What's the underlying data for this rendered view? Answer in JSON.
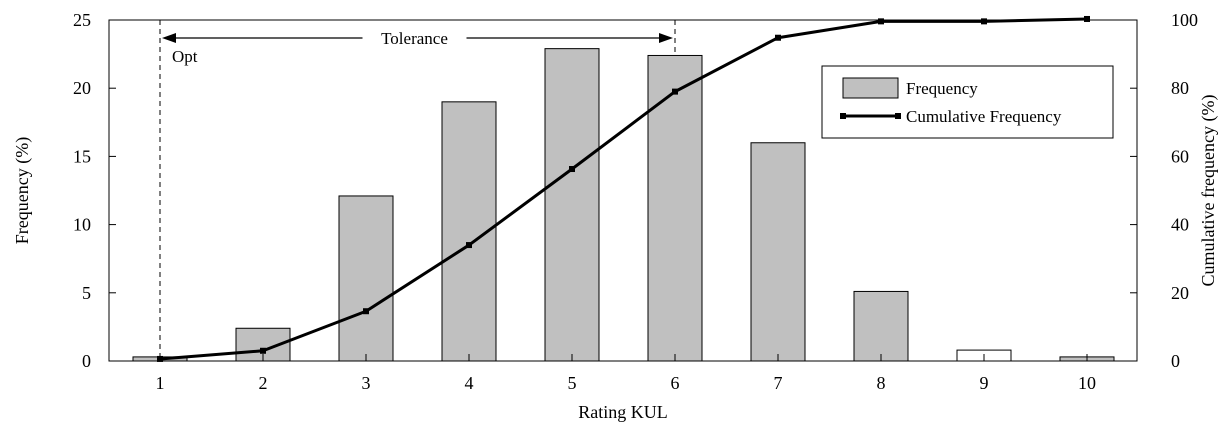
{
  "chart_data": {
    "type": "bar",
    "categories": [
      "1",
      "2",
      "3",
      "4",
      "5",
      "6",
      "7",
      "8",
      "9",
      "10"
    ],
    "series": [
      {
        "name": "Frequency",
        "kind": "bar",
        "axis": "left",
        "values": [
          0.3,
          2.4,
          12.1,
          19.0,
          22.9,
          22.4,
          16.0,
          5.1,
          0.8,
          0.3
        ],
        "fill_colors": [
          "#c0c0c0",
          "#c0c0c0",
          "#c0c0c0",
          "#c0c0c0",
          "#c0c0c0",
          "#c0c0c0",
          "#c0c0c0",
          "#c0c0c0",
          "#ffffff",
          "#c0c0c0"
        ]
      },
      {
        "name": "Cumulative Frequency",
        "kind": "line",
        "axis": "right",
        "values": [
          0.6,
          3.0,
          14.6,
          34.0,
          56.3,
          79.0,
          94.8,
          99.6,
          99.6,
          100.3
        ],
        "color": "#000000"
      }
    ],
    "xlabel": "Rating KUL",
    "ylabel": "Frequency (%)",
    "ylabel_right": "Cumulative frequency (%)",
    "ylim": [
      0,
      25
    ],
    "ylim_right": [
      0,
      100
    ],
    "yticks": [
      "0",
      "5",
      "10",
      "15",
      "20",
      "25"
    ],
    "yticks_right": [
      "0",
      "20",
      "40",
      "60",
      "80",
      "100"
    ],
    "grid": false,
    "legend_position": "top-right",
    "annotations": {
      "opt_label": "Opt",
      "opt_at": 1,
      "tolerance_label": "Tolerance",
      "tolerance_from": 1,
      "tolerance_to": 6
    },
    "bar_color": "#c0c0c0"
  }
}
